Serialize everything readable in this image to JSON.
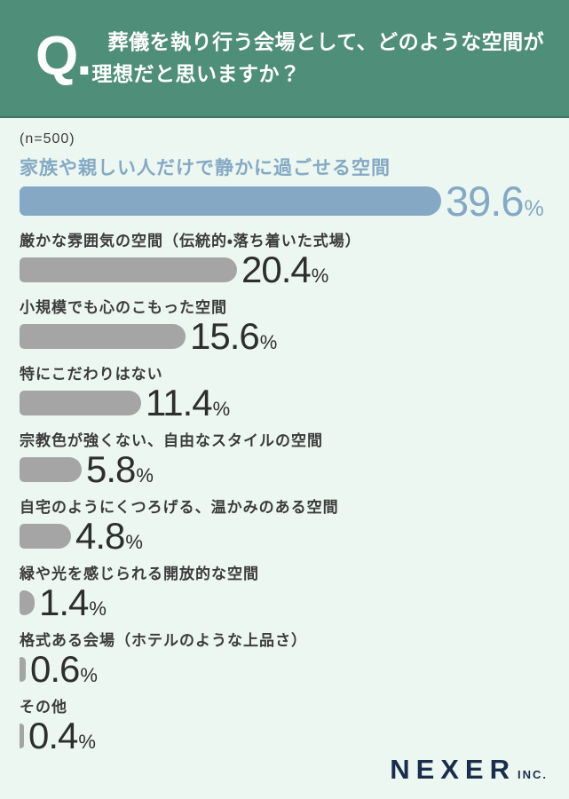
{
  "header": {
    "q_label": "Q.",
    "question_lines": [
      "葬儀を執り行う会場として、どのような空間が",
      "理想だと思いますか？"
    ]
  },
  "sample_label": "(n=500)",
  "percent_sign": "%",
  "footer": {
    "brand": "NEXER",
    "brand_suffix": "INC."
  },
  "colors": {
    "header_green": "#4f8e79",
    "background_mint": "#ecf7f1",
    "highlight_blue": "#85a9c4",
    "bar_gray": "#a5a5a5",
    "percent_dark": "#2e2e2e",
    "logo_navy": "#1b2d4d"
  },
  "chart_data": {
    "type": "bar",
    "orientation": "horizontal",
    "title": "葬儀を執り行う会場として、どのような空間が理想だと思いますか？",
    "sample_size": 500,
    "unit": "%",
    "xlim": [
      0,
      40
    ],
    "grid": false,
    "legend": false,
    "highlight_index": 0,
    "categories": [
      "家族や親しい人だけで静かに過ごせる空間",
      "厳かな雰囲気の空間（伝統的・落ち着いた式場）",
      "小規模でも心のこもった空間",
      "特にこだわりはない",
      "宗教色が強くない、自由なスタイルの空間",
      "自宅のようにくつろげる、温かみのある空間",
      "緑や光を感じられる開放的な空間",
      "格式ある会場（ホテルのような上品さ）",
      "その他"
    ],
    "values": [
      39.6,
      20.4,
      15.6,
      11.4,
      5.8,
      4.8,
      1.4,
      0.6,
      0.4
    ]
  }
}
